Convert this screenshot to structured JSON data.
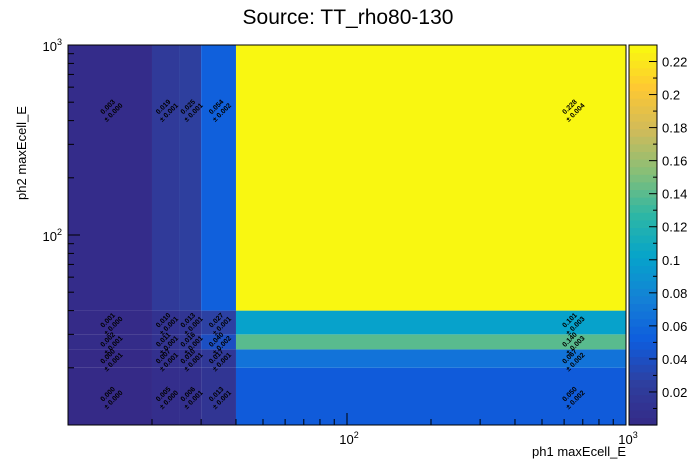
{
  "chart_data": {
    "type": "heatmap",
    "title": "Source: TT_rho80-130",
    "xlabel": "ph1 maxEcell_E",
    "ylabel": "ph2 maxEcell_E",
    "x_scale": "log",
    "y_scale": "log",
    "xlim": [
      10,
      1000
    ],
    "ylim": [
      10,
      1000
    ],
    "x_tick_labels": [
      {
        "value": 100,
        "base": "10",
        "exp": "2"
      },
      {
        "value": 1000,
        "base": "10",
        "exp": "3"
      }
    ],
    "y_tick_labels": [
      {
        "value": 100,
        "base": "10",
        "exp": "2"
      },
      {
        "value": 1000,
        "base": "10",
        "exp": "3"
      }
    ],
    "x_edges": [
      10,
      20,
      25,
      30,
      40,
      1000
    ],
    "y_edges": [
      10,
      20,
      25,
      30,
      40,
      1000
    ],
    "z_range": [
      0,
      0.23
    ],
    "colorbar_ticks": [
      "0.02",
      "0.04",
      "0.06",
      "0.08",
      "0.1",
      "0.12",
      "0.14",
      "0.16",
      "0.18",
      "0.2",
      "0.22"
    ],
    "palette": [
      "#352a87",
      "#2e3f9f",
      "#0f5cdd",
      "#1481d6",
      "#06a4ca",
      "#2eb7a4",
      "#87bf77",
      "#d1bb59",
      "#fec832",
      "#f9fb0e"
    ],
    "cells": [
      {
        "ix": 0,
        "iy": 0,
        "value": 0.0,
        "label": "0.000",
        "err": "± 0.000"
      },
      {
        "ix": 1,
        "iy": 0,
        "value": 0.005,
        "label": "0.005",
        "err": "± 0.000"
      },
      {
        "ix": 2,
        "iy": 0,
        "value": 0.006,
        "label": "0.006",
        "err": "± 0.001"
      },
      {
        "ix": 3,
        "iy": 0,
        "value": 0.013,
        "label": "0.013",
        "err": "± 0.001"
      },
      {
        "ix": 4,
        "iy": 0,
        "value": 0.05,
        "label": "0.050",
        "err": "± 0.002"
      },
      {
        "ix": 0,
        "iy": 1,
        "value": 0.0,
        "label": "0.000",
        "err": "± 0.001"
      },
      {
        "ix": 1,
        "iy": 1,
        "value": 0.007,
        "label": "0.007",
        "err": "± 0.001"
      },
      {
        "ix": 2,
        "iy": 1,
        "value": 0.01,
        "label": "0.010",
        "err": "± 0.001"
      },
      {
        "ix": 3,
        "iy": 1,
        "value": 0.017,
        "label": "0.017",
        "err": "± 0.001"
      },
      {
        "ix": 4,
        "iy": 1,
        "value": 0.067,
        "label": "0.067",
        "err": "± 0.002"
      },
      {
        "ix": 0,
        "iy": 2,
        "value": 0.002,
        "label": "0.002",
        "err": "± 0.001"
      },
      {
        "ix": 1,
        "iy": 2,
        "value": 0.011,
        "label": "0.011",
        "err": "± 0.001"
      },
      {
        "ix": 2,
        "iy": 2,
        "value": 0.016,
        "label": "0.016",
        "err": "± 0.001"
      },
      {
        "ix": 3,
        "iy": 2,
        "value": 0.04,
        "label": "0.040",
        "err": "± 0.002"
      },
      {
        "ix": 4,
        "iy": 2,
        "value": 0.14,
        "label": "0.140",
        "err": "± 0.003"
      },
      {
        "ix": 0,
        "iy": 3,
        "value": 0.001,
        "label": "0.001",
        "err": "± 0.000"
      },
      {
        "ix": 1,
        "iy": 3,
        "value": 0.01,
        "label": "0.010",
        "err": "± 0.001"
      },
      {
        "ix": 2,
        "iy": 3,
        "value": 0.013,
        "label": "0.013",
        "err": "± 0.001"
      },
      {
        "ix": 3,
        "iy": 3,
        "value": 0.027,
        "label": "0.027",
        "err": "± 0.001"
      },
      {
        "ix": 4,
        "iy": 3,
        "value": 0.101,
        "label": "0.101",
        "err": "± 0.003"
      },
      {
        "ix": 0,
        "iy": 4,
        "value": 0.003,
        "label": "0.003",
        "err": "± 0.000"
      },
      {
        "ix": 1,
        "iy": 4,
        "value": 0.019,
        "label": "0.019",
        "err": "± 0.001"
      },
      {
        "ix": 2,
        "iy": 4,
        "value": 0.025,
        "label": "0.025",
        "err": "± 0.001"
      },
      {
        "ix": 3,
        "iy": 4,
        "value": 0.054,
        "label": "0.054",
        "err": "± 0.002"
      },
      {
        "ix": 4,
        "iy": 4,
        "value": 0.228,
        "label": "0.228",
        "err": "± 0.004"
      }
    ]
  }
}
